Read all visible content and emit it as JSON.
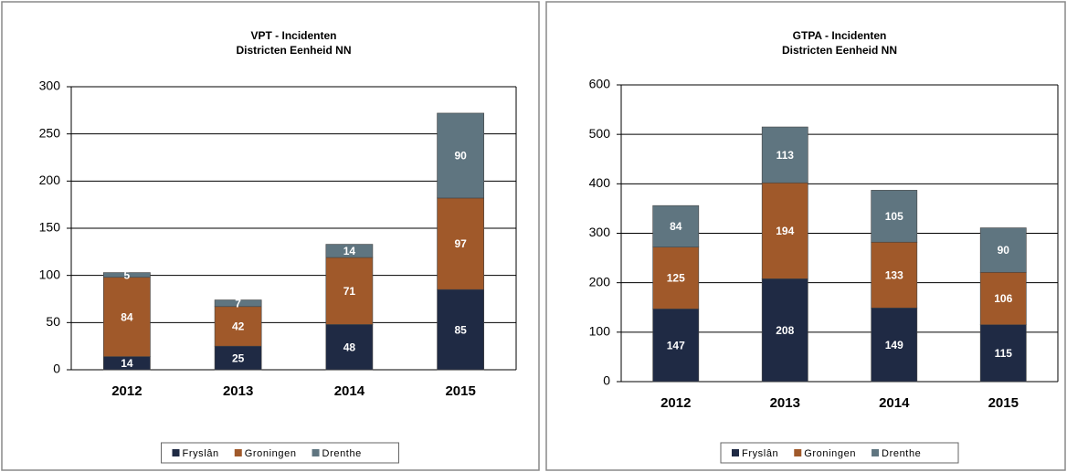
{
  "chart_data": [
    {
      "type": "stacked_bar",
      "title": "VPT - Incidenten",
      "subtitle": "Districten Eenheid NN",
      "categories": [
        "2012",
        "2013",
        "2014",
        "2015"
      ],
      "series": [
        {
          "name": "Fryslân",
          "color": "#1f2a44",
          "values": [
            14,
            25,
            48,
            85
          ]
        },
        {
          "name": "Groningen",
          "color": "#a0592a",
          "values": [
            84,
            42,
            71,
            97
          ]
        },
        {
          "name": "Drenthe",
          "color": "#5f7580",
          "values": [
            5,
            7,
            14,
            90
          ]
        }
      ],
      "ylim": [
        0,
        300
      ],
      "yticks": [
        0,
        50,
        100,
        150,
        200,
        250,
        300
      ],
      "grid": true,
      "legend": "bottom"
    },
    {
      "type": "stacked_bar",
      "title": "GTPA - Incidenten",
      "subtitle": "Districten Eenheid NN",
      "categories": [
        "2012",
        "2013",
        "2014",
        "2015"
      ],
      "series": [
        {
          "name": "Fryslân",
          "color": "#1f2a44",
          "values": [
            147,
            208,
            149,
            115
          ]
        },
        {
          "name": "Groningen",
          "color": "#a0592a",
          "values": [
            125,
            194,
            133,
            106
          ]
        },
        {
          "name": "Drenthe",
          "color": "#5f7580",
          "values": [
            84,
            113,
            105,
            90
          ]
        }
      ],
      "ylim": [
        0,
        600
      ],
      "yticks": [
        0,
        100,
        200,
        300,
        400,
        500,
        600
      ],
      "grid": true,
      "legend": "bottom"
    }
  ]
}
